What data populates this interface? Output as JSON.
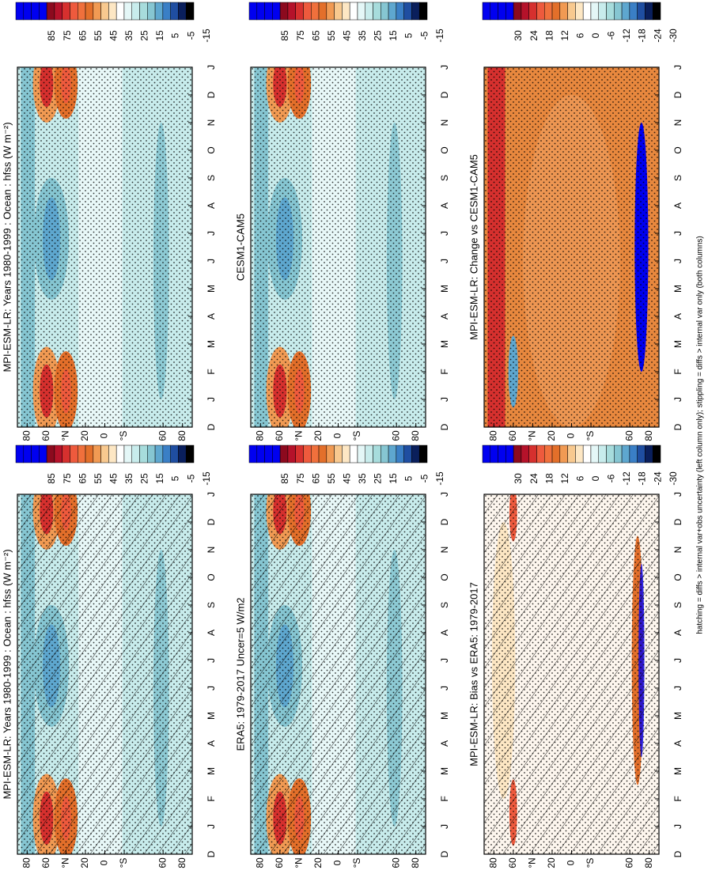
{
  "panels": [
    {
      "title": "MPI-ESM-LR: Years 1980-1999 : Ocean : hfss (W m⁻²)",
      "colorbar_labels": [
        85,
        75,
        65,
        55,
        45,
        35,
        25,
        15,
        5,
        -5,
        -15
      ]
    },
    {
      "title": "ERA5: 1979-2017 Uncer=5 W/m2",
      "colorbar_labels": [
        85,
        75,
        65,
        55,
        45,
        35,
        25,
        15,
        5,
        -5,
        -15
      ]
    },
    {
      "title": "MPI-ESM-LR: Bias vs ERA5: 1979-2017",
      "colorbar_labels": [
        30,
        24,
        18,
        12,
        6,
        0,
        -6,
        -12,
        -18,
        -24,
        -30
      ]
    },
    {
      "title": "MPI-ESM-LR: Years 1980-1999 : Ocean : hfss (W m⁻²)",
      "colorbar_labels": [
        85,
        75,
        65,
        55,
        45,
        35,
        25,
        15,
        5,
        -5,
        -15
      ]
    },
    {
      "title": "CESM1-CAM5",
      "colorbar_labels": [
        85,
        75,
        65,
        55,
        45,
        35,
        25,
        15,
        5,
        -5,
        -15
      ]
    },
    {
      "title": "MPI-ESM-LR: Change vs CESM1-CAM5",
      "colorbar_labels": [
        30,
        24,
        18,
        12,
        6,
        0,
        -6,
        -12,
        -18,
        -24,
        -30
      ]
    }
  ],
  "months": [
    "D",
    "J",
    "F",
    "M",
    "A",
    "M",
    "J",
    "J",
    "A",
    "S",
    "O",
    "N",
    "D",
    "J"
  ],
  "lat_labels": [
    "80",
    "60",
    "°N",
    "20",
    "0",
    "°S",
    "60",
    "80"
  ],
  "footnote": "hatching = diffs > internal var+obs uncertainty (left column only); stippling = diffs > internal var only (both columns)"
}
